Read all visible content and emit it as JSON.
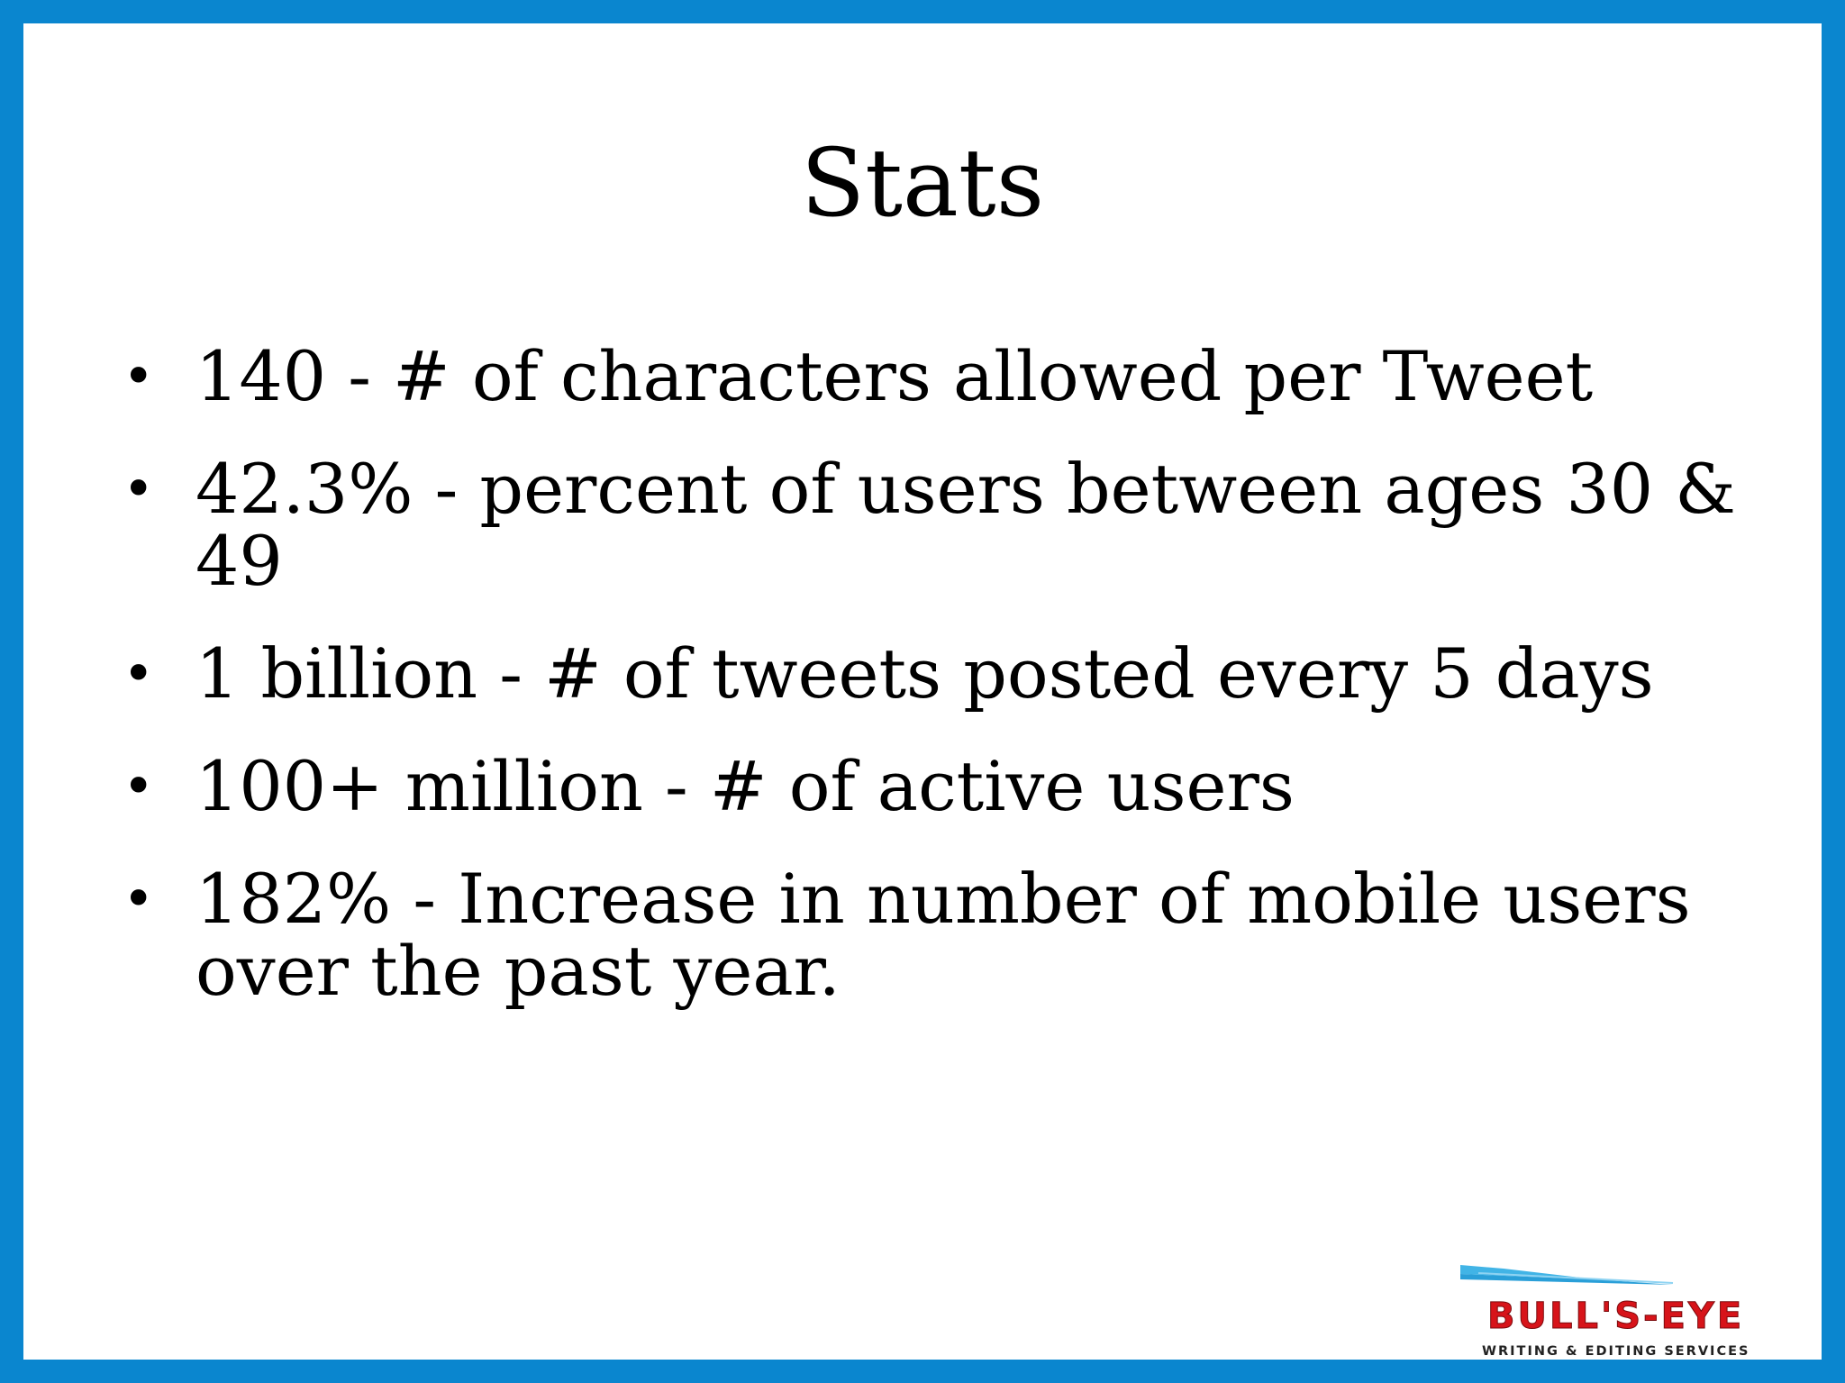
{
  "slide": {
    "title": "Stats",
    "bullets": [
      "140 - # of characters allowed per Tweet",
      "42.3% - percent of users between ages 30 & 49",
      "1 billion - # of tweets posted every 5 days",
      "100+ million - # of active users",
      "182% - Increase in number of mobile users over the past year."
    ],
    "bullet_symbol": "•"
  },
  "logo": {
    "icon": "bullseye-arrow-icon",
    "name": "BULL'S-EYE",
    "tagline": "WRITING & EDITING SERVICES"
  },
  "colors": {
    "border": "#0a86cf",
    "logo_red": "#d7141a",
    "logo_blue": "#41b4e6"
  }
}
